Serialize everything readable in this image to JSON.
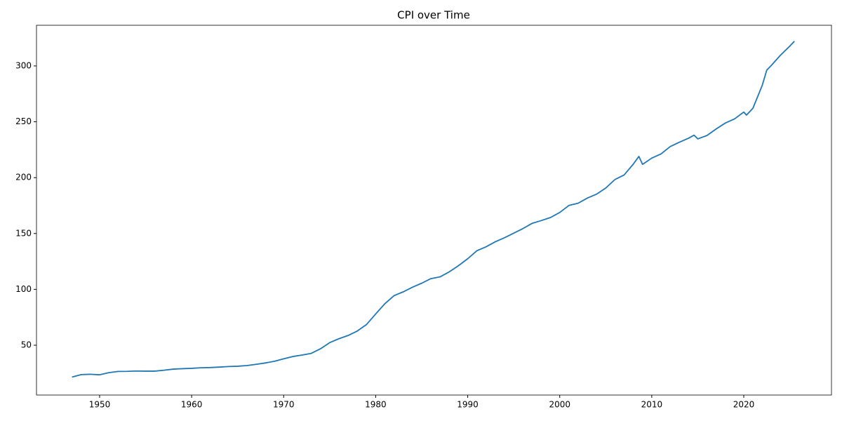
{
  "chart_data": {
    "type": "line",
    "title": "CPI over Time",
    "x": [
      1947,
      1948,
      1949,
      1950,
      1951,
      1952,
      1953,
      1954,
      1955,
      1956,
      1957,
      1958,
      1959,
      1960,
      1961,
      1962,
      1963,
      1964,
      1965,
      1966,
      1967,
      1968,
      1969,
      1970,
      1971,
      1972,
      1973,
      1974,
      1975,
      1976,
      1977,
      1978,
      1979,
      1980,
      1981,
      1982,
      1983,
      1984,
      1985,
      1986,
      1987,
      1988,
      1989,
      1990,
      1991,
      1992,
      1993,
      1994,
      1995,
      1996,
      1997,
      1998,
      1999,
      2000,
      2001,
      2002,
      2003,
      2004,
      2005,
      2006,
      2007,
      2008,
      2008.6,
      2009,
      2010,
      2011,
      2012,
      2013,
      2014,
      2014.6,
      2015,
      2016,
      2017,
      2018,
      2019,
      2020,
      2020.3,
      2021,
      2022,
      2022.5,
      2023,
      2024,
      2025,
      2025.5
    ],
    "series": [
      {
        "color": "#1f77b4",
        "values": [
          21.5,
          23.7,
          24.0,
          23.5,
          25.4,
          26.5,
          26.6,
          26.9,
          26.8,
          26.8,
          27.6,
          28.6,
          29.0,
          29.3,
          29.8,
          30.0,
          30.4,
          30.9,
          31.2,
          31.8,
          32.9,
          34.1,
          35.6,
          37.8,
          39.9,
          41.2,
          42.7,
          46.8,
          52.3,
          55.8,
          58.7,
          62.7,
          68.5,
          78.0,
          87.2,
          94.4,
          97.8,
          101.9,
          105.5,
          109.6,
          111.2,
          115.7,
          121.2,
          127.4,
          134.6,
          138.1,
          142.6,
          146.2,
          150.3,
          154.4,
          159.1,
          161.6,
          164.3,
          168.8,
          175.1,
          177.1,
          181.7,
          185.2,
          190.7,
          198.3,
          202.4,
          212.2,
          219.0,
          211.9,
          217.5,
          221.2,
          227.8,
          231.7,
          235.3,
          238.0,
          234.7,
          237.7,
          243.6,
          248.9,
          252.6,
          258.7,
          256.0,
          262.2,
          282.5,
          296.3,
          300.5,
          309.7,
          317.7,
          322.1
        ]
      }
    ],
    "xlim": [
      1943.14,
      2029.53
    ],
    "ylim": [
      5.4,
      336.4
    ],
    "xticks": [
      1950,
      1960,
      1970,
      1980,
      1990,
      2000,
      2010,
      2020
    ],
    "yticks": [
      50,
      100,
      150,
      200,
      250,
      300
    ],
    "grid": false
  }
}
